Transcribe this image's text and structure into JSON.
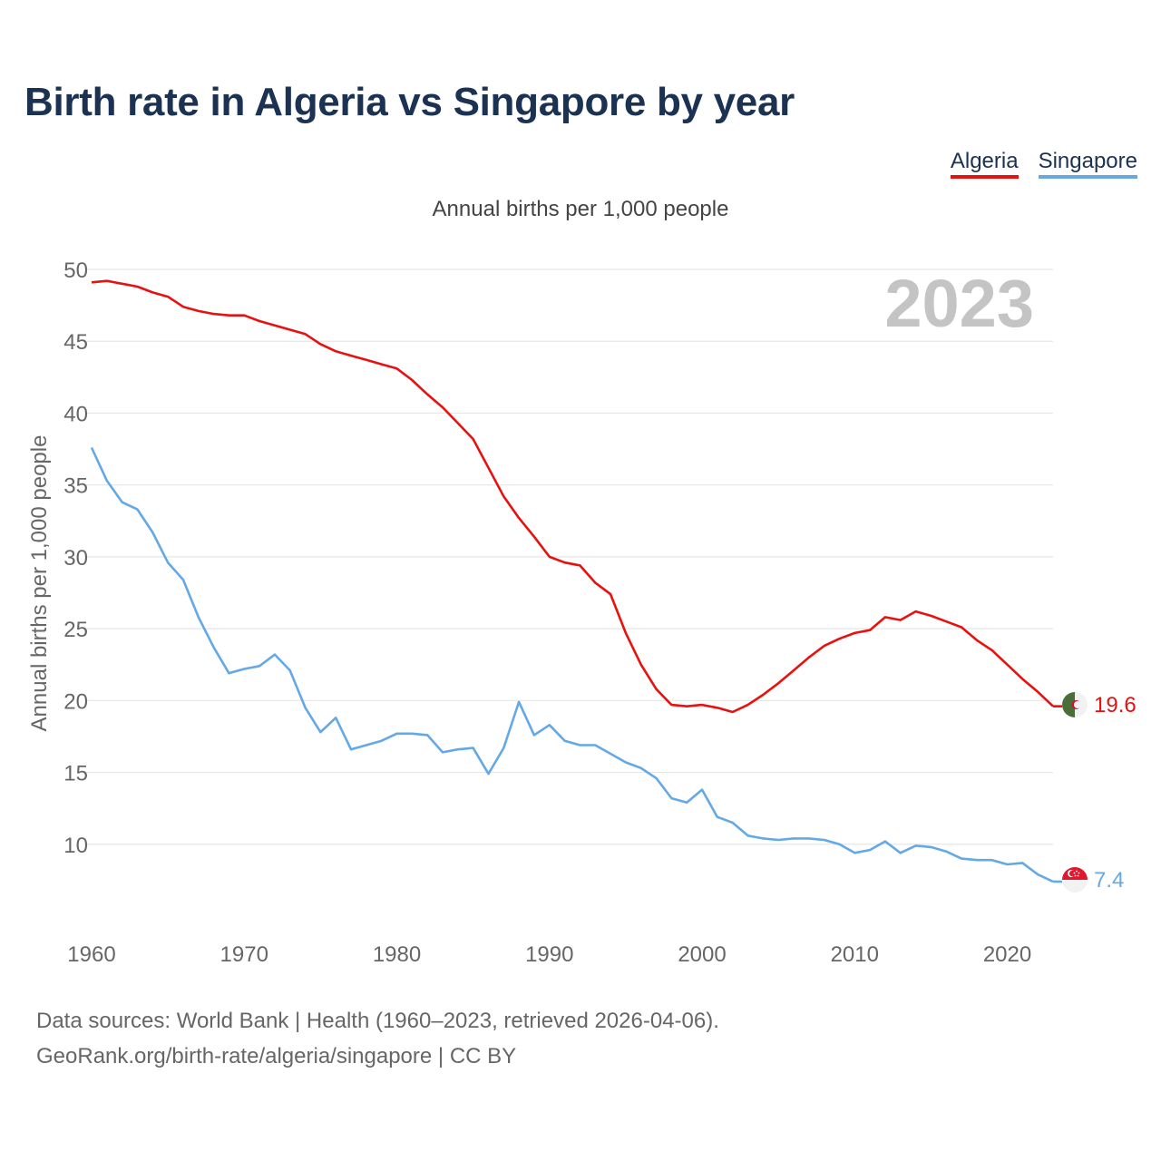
{
  "title": "Birth rate in Algeria vs Singapore by year",
  "legend": {
    "algeria": "Algeria",
    "singapore": "Singapore"
  },
  "subtitle": "Annual births per 1,000 people",
  "year_watermark": "2023",
  "source": {
    "line1": "Data sources: World Bank | Health (1960–2023, retrieved 2026-04-06).",
    "line2": "GeoRank.org/birth-rate/algeria/singapore | CC BY"
  },
  "chart_data": {
    "type": "line",
    "title": "Birth rate in Algeria vs Singapore by year",
    "xlabel": "",
    "ylabel": "Annual births per 1,000 people",
    "xlim": [
      1960,
      2023
    ],
    "ylim": [
      5,
      50
    ],
    "x_ticks": [
      1960,
      1970,
      1980,
      1990,
      2000,
      2010,
      2020
    ],
    "y_ticks": [
      10,
      15,
      20,
      25,
      30,
      35,
      40,
      45,
      50
    ],
    "grid": true,
    "legend_position": "top-right",
    "x": [
      1960,
      1961,
      1962,
      1963,
      1964,
      1965,
      1966,
      1967,
      1968,
      1969,
      1970,
      1971,
      1972,
      1973,
      1974,
      1975,
      1976,
      1977,
      1978,
      1979,
      1980,
      1981,
      1982,
      1983,
      1984,
      1985,
      1986,
      1987,
      1988,
      1989,
      1990,
      1991,
      1992,
      1993,
      1994,
      1995,
      1996,
      1997,
      1998,
      1999,
      2000,
      2001,
      2002,
      2003,
      2004,
      2005,
      2006,
      2007,
      2008,
      2009,
      2010,
      2011,
      2012,
      2013,
      2014,
      2015,
      2016,
      2017,
      2018,
      2019,
      2020,
      2021,
      2022,
      2023
    ],
    "series": [
      {
        "name": "Algeria",
        "color": "#e8110f",
        "end_label": "19.6",
        "values": [
          49.1,
          49.2,
          49.0,
          48.8,
          48.4,
          48.1,
          47.4,
          47.1,
          46.9,
          46.8,
          46.8,
          46.4,
          46.1,
          45.8,
          45.5,
          44.8,
          44.3,
          44.0,
          43.7,
          43.4,
          43.1,
          42.3,
          41.3,
          40.4,
          39.3,
          38.2,
          36.2,
          34.2,
          32.7,
          31.4,
          30.0,
          29.6,
          29.4,
          28.2,
          27.4,
          24.7,
          22.5,
          20.8,
          19.7,
          19.6,
          19.7,
          19.5,
          19.2,
          19.7,
          20.4,
          21.2,
          22.1,
          23.0,
          23.8,
          24.3,
          24.7,
          24.9,
          25.8,
          25.6,
          26.2,
          25.9,
          25.5,
          25.1,
          24.2,
          23.5,
          22.5,
          21.5,
          20.6,
          19.6
        ]
      },
      {
        "name": "Singapore",
        "color": "#64a8e6",
        "end_label": "7.4",
        "values": [
          37.6,
          35.3,
          33.8,
          33.3,
          31.7,
          29.6,
          28.4,
          25.8,
          23.7,
          21.9,
          22.2,
          22.4,
          23.2,
          22.1,
          19.5,
          17.8,
          18.8,
          16.6,
          16.9,
          17.2,
          17.7,
          17.7,
          17.6,
          16.4,
          16.6,
          16.7,
          14.9,
          16.7,
          19.9,
          17.6,
          18.3,
          17.2,
          16.9,
          16.9,
          16.3,
          15.7,
          15.3,
          14.6,
          13.2,
          12.9,
          13.8,
          11.9,
          11.5,
          10.6,
          10.4,
          10.3,
          10.4,
          10.4,
          10.3,
          10.0,
          9.4,
          9.6,
          10.2,
          9.4,
          9.9,
          9.8,
          9.5,
          9.0,
          8.9,
          8.9,
          8.6,
          8.7,
          7.9,
          7.4
        ]
      }
    ]
  }
}
